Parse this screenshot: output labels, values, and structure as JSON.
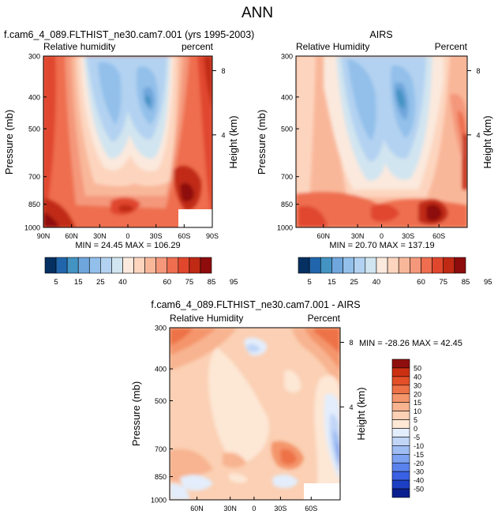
{
  "page_title": "ANN",
  "colors": {
    "rh_scale": [
      "#053061",
      "#2166ac",
      "#4393c3",
      "#6fa6dc",
      "#92c0ea",
      "#b3d2f1",
      "#d1e5f0",
      "#fbe9dd",
      "#fdd5bf",
      "#f9b79a",
      "#f4977a",
      "#ee6e4f",
      "#e0472d",
      "#c02914",
      "#8e0c0c"
    ],
    "diff_scale": [
      "#0a1f8f",
      "#1d3fc4",
      "#3a61e3",
      "#5a82ed",
      "#7da2f1",
      "#9fbdf3",
      "#c1d6f7",
      "#e3edfb",
      "#fde7d5",
      "#fbd0b4",
      "#f8b490",
      "#f4956c",
      "#ee7247",
      "#e34f28",
      "#cc3012",
      "#8f0e0e"
    ]
  },
  "chart_data": [
    {
      "id": "model",
      "type": "contour",
      "title": "f.cam6_4_089.FLTHIST_ne30.cam7.001 (yrs 1995-2003)",
      "left_label": "Relative humidity",
      "right_label": "percent",
      "ylabel": "Pressure (mb)",
      "y2label": "Height (km)",
      "y_ticks": [
        "300",
        "400",
        "500",
        "700",
        "850",
        "1000"
      ],
      "y2_ticks": [
        "8",
        "4"
      ],
      "x_ticks": [
        "90N",
        "60N",
        "30N",
        "0",
        "30S",
        "60S",
        "90S"
      ],
      "stats": "MIN = 24.45   MAX = 106.29"
    },
    {
      "id": "obs",
      "type": "contour",
      "title": "AIRS",
      "left_label": "Relative Humidity",
      "right_label": "Percent",
      "ylabel": "Pressure (mb)",
      "y2label": "Height (km)",
      "y_ticks": [
        "300",
        "400",
        "500",
        "700",
        "850",
        "1000"
      ],
      "y2_ticks": [
        "8",
        "4"
      ],
      "x_ticks": [
        "60N",
        "30N",
        "0",
        "30S",
        "60S"
      ],
      "stats": "MIN = 20.70   MAX = 137.19"
    },
    {
      "id": "diff",
      "type": "contour",
      "title": "f.cam6_4_089.FLTHIST_ne30.cam7.001 - AIRS",
      "left_label": "Relative Humidity",
      "right_label": "Percent",
      "ylabel": "Pressure (mb)",
      "y2label": "Height (km)",
      "y_ticks": [
        "300",
        "400",
        "500",
        "700",
        "850",
        "1000"
      ],
      "y2_ticks": [
        "8",
        "4"
      ],
      "x_ticks": [
        "60N",
        "30N",
        "0",
        "30S",
        "60S"
      ],
      "stats": "MIN = -28.26   MAX = 42.45"
    }
  ],
  "colorbars": {
    "rh_labels": [
      "5",
      "15",
      "25",
      "40",
      "60",
      "75",
      "85",
      "95"
    ],
    "diff_labels": [
      "50",
      "40",
      "30",
      "20",
      "15",
      "10",
      "5",
      "0",
      "-5",
      "-10",
      "-15",
      "-20",
      "-30",
      "-40",
      "-50"
    ]
  }
}
